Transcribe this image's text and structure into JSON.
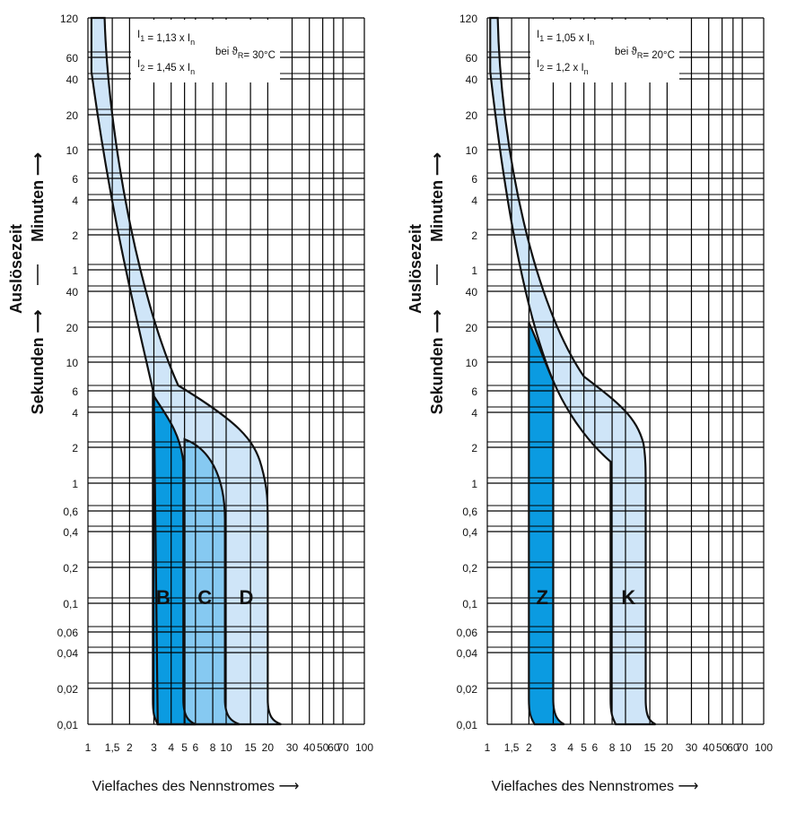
{
  "colors": {
    "band_dark": "#0b9be1",
    "band_mid": "#86c9f1",
    "band_light": "#cfe5f8",
    "grid": "#000000"
  },
  "chart_data": [
    {
      "type": "area",
      "title": "",
      "xlabel": "Vielfaches des Nennstromes",
      "xscale": "log",
      "xlim": [
        1,
        100
      ],
      "yscale": "time",
      "ylabel_top": "Minuten",
      "ylabel_bottom": "Sekunden",
      "ylabel_main": "Auslösezeit",
      "x_ticks": [
        "1",
        "1,5",
        "2",
        "3",
        "4",
        "5",
        "6",
        "8",
        "10",
        "15",
        "20",
        "30",
        "40",
        "50",
        "60",
        "70",
        "100"
      ],
      "x_tick_values": [
        1,
        1.5,
        2,
        3,
        4,
        5,
        6,
        8,
        10,
        15,
        20,
        30,
        40,
        50,
        60,
        70,
        100
      ],
      "y_ticks_minutes": [
        "120",
        "60",
        "40",
        "20",
        "10",
        "6",
        "4",
        "2",
        "1"
      ],
      "y_ticks_seconds": [
        "40",
        "20",
        "10",
        "6",
        "4",
        "2",
        "1",
        "0,6",
        "0,4",
        "0,2",
        "0,1",
        "0,06",
        "0,04",
        "0,02",
        "0,01"
      ],
      "annotation": {
        "i1": "I1 = 1,13 x In",
        "i2": "I2 = 1,45 x In",
        "cond": "bei ϑR= 30°C"
      },
      "thermal_band": {
        "left_x_at_top": 1.13,
        "right_x_at_top": 1.45,
        "x_at_1min": [
          1.55,
          2.05
        ],
        "x_at_10s": [
          2.35,
          3.6
        ]
      },
      "series": [
        {
          "name": "B",
          "instant_trip_range": [
            3,
            5
          ],
          "color": "band_dark"
        },
        {
          "name": "C",
          "instant_trip_range": [
            5,
            10
          ],
          "color": "band_mid"
        },
        {
          "name": "D",
          "instant_trip_range": [
            10,
            20
          ],
          "color": "band_light"
        }
      ]
    },
    {
      "type": "area",
      "title": "",
      "xlabel": "Vielfaches des Nennstromes",
      "xscale": "log",
      "xlim": [
        1,
        100
      ],
      "yscale": "time",
      "ylabel_top": "Minuten",
      "ylabel_bottom": "Sekunden",
      "ylabel_main": "Auslösezeit",
      "x_ticks": [
        "1",
        "1,5",
        "2",
        "3",
        "4",
        "5",
        "6",
        "8",
        "10",
        "15",
        "20",
        "30",
        "40",
        "50",
        "60",
        "70",
        "100"
      ],
      "x_tick_values": [
        1,
        1.5,
        2,
        3,
        4,
        5,
        6,
        8,
        10,
        15,
        20,
        30,
        40,
        50,
        60,
        70,
        100
      ],
      "y_ticks_minutes": [
        "120",
        "60",
        "40",
        "20",
        "10",
        "6",
        "4",
        "2",
        "1"
      ],
      "y_ticks_seconds": [
        "40",
        "20",
        "10",
        "6",
        "4",
        "2",
        "1",
        "0,6",
        "0,4",
        "0,2",
        "0,1",
        "0,06",
        "0,04",
        "0,02",
        "0,01"
      ],
      "annotation": {
        "i1": "I1 = 1,05 x In",
        "i2": "I2 = 1,2 x In",
        "cond": "bei ϑR= 20°C"
      },
      "series": [
        {
          "name": "Z",
          "instant_trip_range": [
            2,
            3
          ],
          "color": "band_dark"
        },
        {
          "name": "K",
          "instant_trip_range": [
            8,
            14
          ],
          "color": "band_light"
        }
      ]
    }
  ]
}
